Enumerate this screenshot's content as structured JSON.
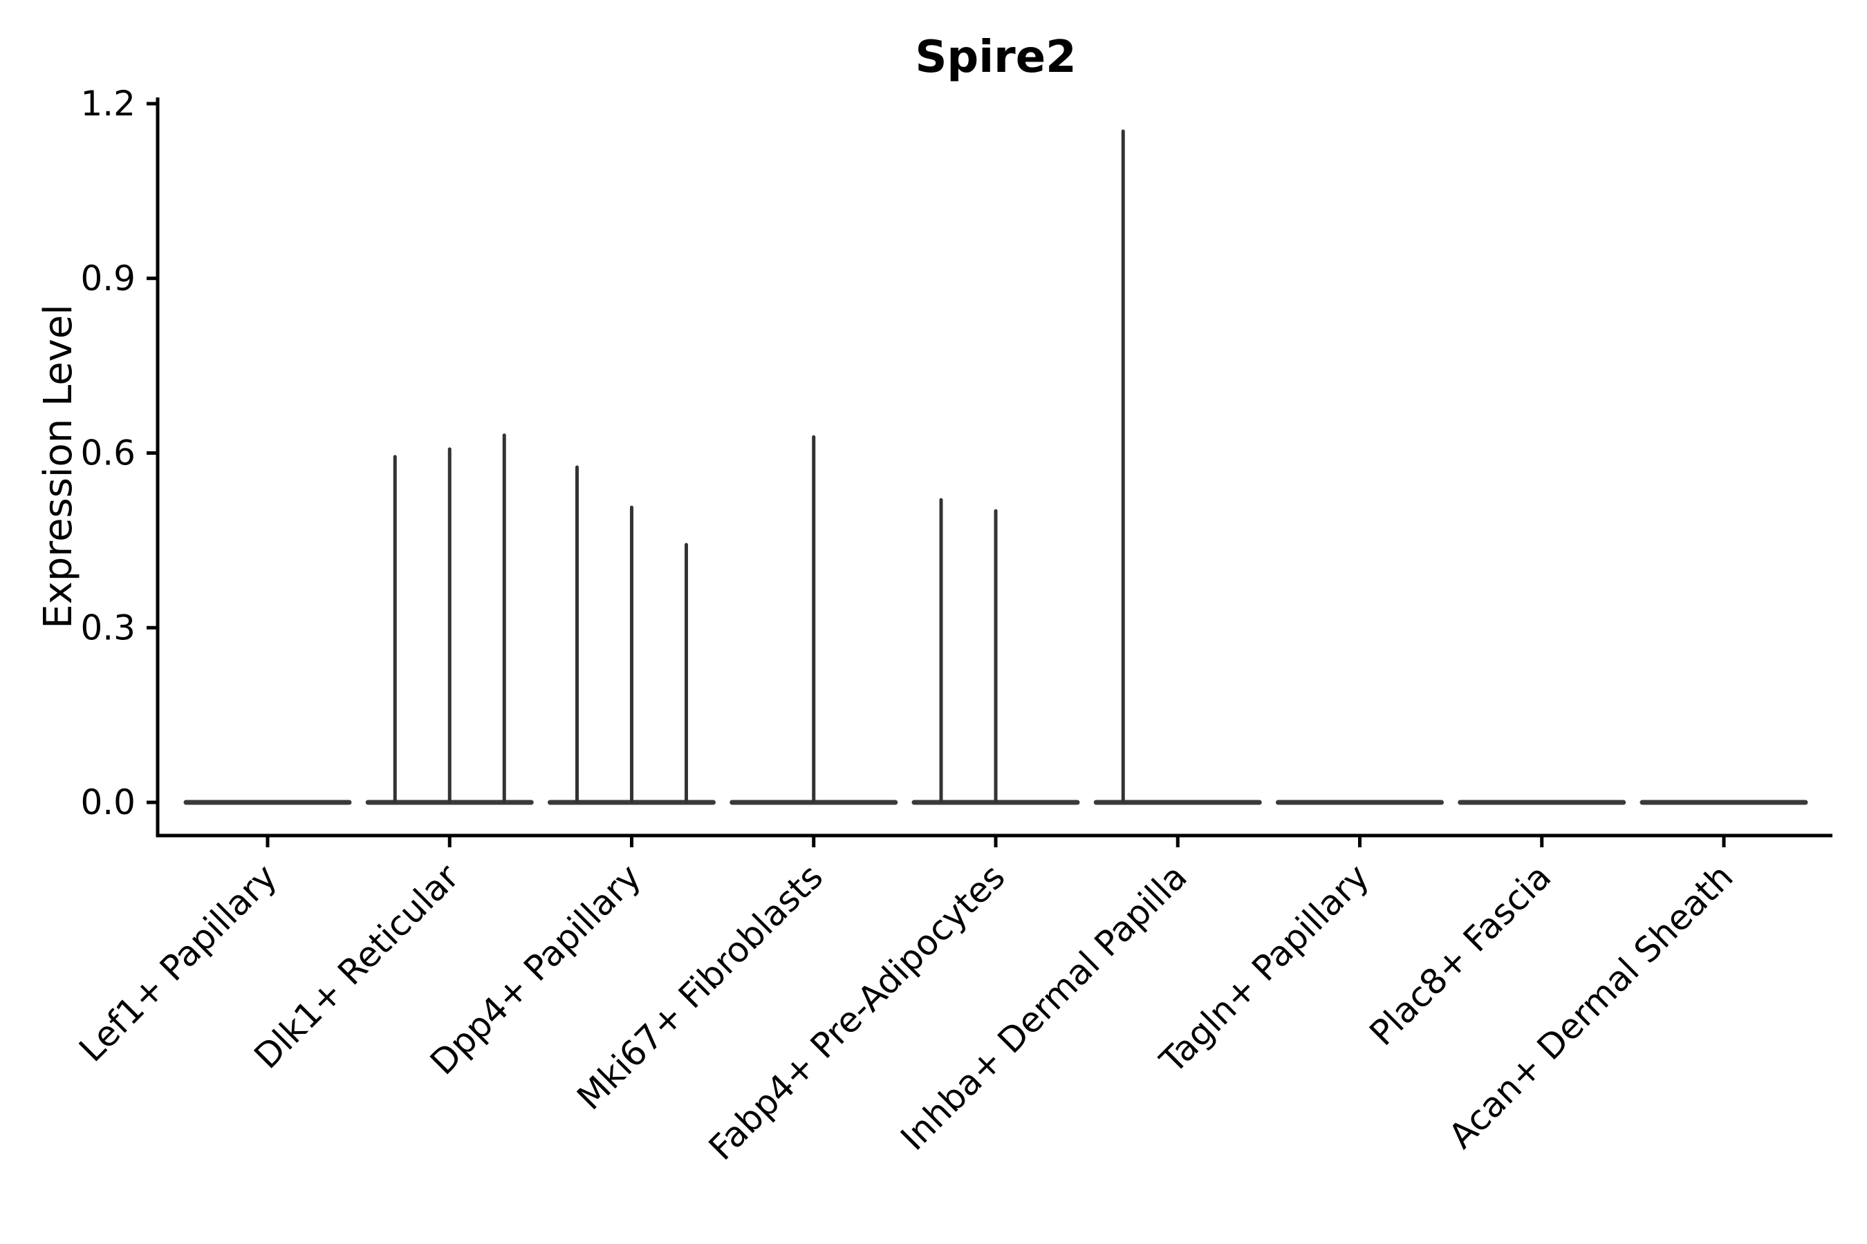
{
  "chart_data": {
    "type": "violin",
    "title": "Spire2",
    "ylabel": "Expression Level",
    "xlabel": "",
    "grid": false,
    "legend": "none",
    "ylim": [
      -0.057,
      1.211
    ],
    "ytick_values": [
      0.0,
      0.3,
      0.6,
      0.9,
      1.2
    ],
    "ytick_labels": [
      "0.0",
      "0.3",
      "0.6",
      "0.9",
      "1.2"
    ],
    "categories": [
      "Lef1+ Papillary",
      "Dlk1+ Reticular",
      "Dpp4+ Papillary",
      "Mki67+ Fibroblasts",
      "Fabp4+ Pre-Adipocytes",
      "Inhba+ Dermal Papilla",
      "Tagln+ Papillary",
      "Plac8+ Fascia",
      "Acan+ Dermal Sheath"
    ],
    "violins_per_category": 3,
    "description": "Flat collapsed violins at expression 0 for every cluster; thin density spikes where a sub-violin contains expressing cells. Spike slots are left (-1), center (0), right (+1) within each category.",
    "violins": [
      {
        "category": "Lef1+ Papillary",
        "spikes": []
      },
      {
        "category": "Dlk1+ Reticular",
        "spikes": [
          {
            "slot": -1,
            "peak": 0.596
          },
          {
            "slot": 0,
            "peak": 0.609
          },
          {
            "slot": 1,
            "peak": 0.633
          }
        ]
      },
      {
        "category": "Dpp4+ Papillary",
        "spikes": [
          {
            "slot": -1,
            "peak": 0.578
          },
          {
            "slot": 0,
            "peak": 0.509
          },
          {
            "slot": 1,
            "peak": 0.445
          }
        ]
      },
      {
        "category": "Mki67+ Fibroblasts",
        "spikes": [
          {
            "slot": 0,
            "peak": 0.63
          }
        ]
      },
      {
        "category": "Fabp4+ Pre-Adipocytes",
        "spikes": [
          {
            "slot": -1,
            "peak": 0.522
          },
          {
            "slot": 0,
            "peak": 0.503
          }
        ]
      },
      {
        "category": "Inhba+ Dermal Papilla",
        "spikes": [
          {
            "slot": -1,
            "peak": 1.155
          }
        ]
      },
      {
        "category": "Tagln+ Papillary",
        "spikes": []
      },
      {
        "category": "Plac8+ Fascia",
        "spikes": []
      },
      {
        "category": "Acan+ Dermal Sheath",
        "spikes": []
      }
    ],
    "colors": {
      "background": "#ffffff",
      "violin_stroke": "#333333",
      "baseline_stroke": "#3a3a3a",
      "axis": "#000000",
      "text": "#000000"
    }
  }
}
